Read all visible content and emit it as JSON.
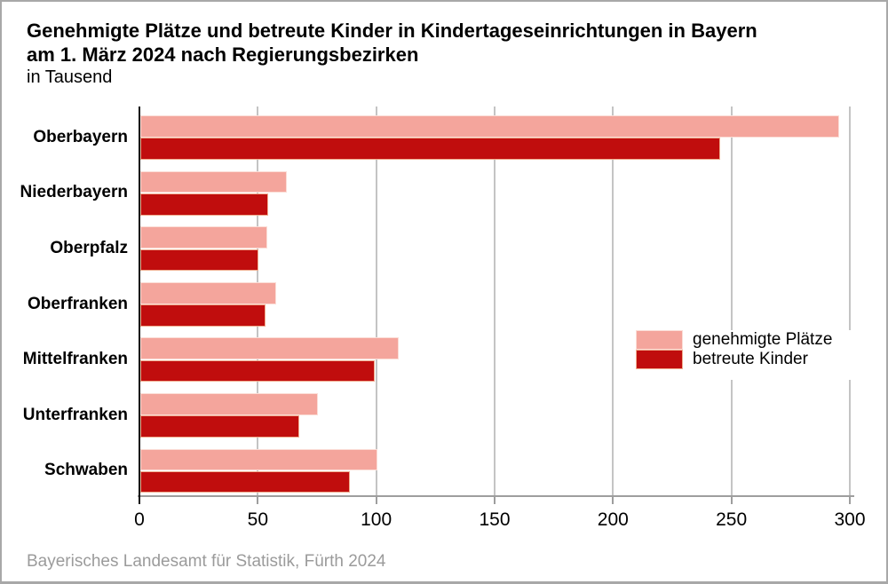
{
  "title": {
    "line1": "Genehmigte Plätze und betreute Kinder in Kindertageseinrichtungen in Bayern",
    "line2": "am 1. März 2024 nach Regierungsbezirken",
    "subtitle": "in Tausend"
  },
  "footer": "Bayerisches Landesamt für Statistik, Fürth 2024",
  "colors": {
    "series1_fill": "#F4A59C",
    "series1_stroke": "#FBDDD6",
    "series2_fill": "#C00D0D",
    "series2_stroke": "#F0AC8F",
    "gridline": "#C4C4C4",
    "x_axis": "#9E9E9E",
    "y_axis": "#111111",
    "footer_text": "#9B9B9B",
    "frame_border": "#A8A8A8"
  },
  "chart_data": {
    "type": "bar",
    "orientation": "horizontal",
    "title": "Genehmigte Plätze und betreute Kinder in Kindertageseinrichtungen in Bayern am 1. März 2024 nach Regierungsbezirken",
    "unit_note": "in Tausend",
    "categories": [
      "Oberbayern",
      "Niederbayern",
      "Oberpfalz",
      "Oberfranken",
      "Mittelfranken",
      "Unterfranken",
      "Schwaben"
    ],
    "series": [
      {
        "name": "genehmigte Plätze",
        "values": [
          295,
          62,
          53.5,
          57.5,
          109,
          75,
          100
        ]
      },
      {
        "name": "betreute Kinder",
        "values": [
          245,
          54,
          50,
          53,
          99,
          67,
          88.5
        ]
      }
    ],
    "xlim": [
      0,
      300
    ],
    "x_ticks": [
      0,
      50,
      100,
      150,
      200,
      250,
      300
    ],
    "grid": "vertical-gridlines",
    "legend_position": "right-middle",
    "source_note": "Bayerisches Landesamt für Statistik, Fürth 2024"
  }
}
